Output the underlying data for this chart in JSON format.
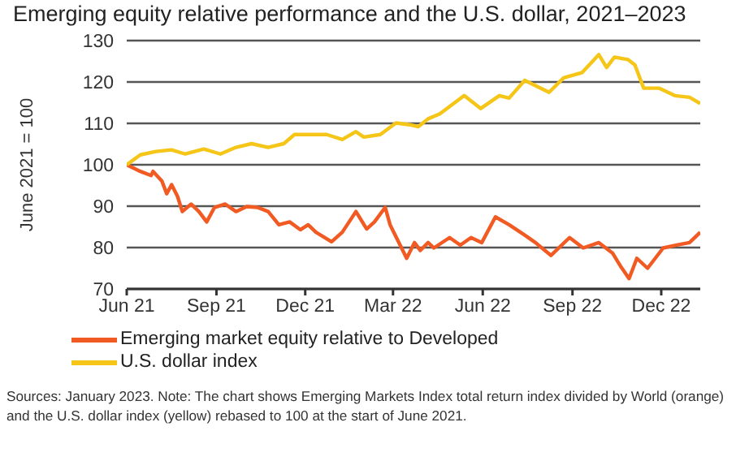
{
  "chart_data": {
    "type": "line",
    "title": "Emerging equity relative performance and the U.S. dollar, 2021–2023",
    "ylabel": "June 2021 = 100",
    "xlim": [
      "2021-06-01",
      "2023-01-10"
    ],
    "xticks": [
      {
        "value": "2021-06-01",
        "label": "Jun 21"
      },
      {
        "value": "2021-09-01",
        "label": "Sep 21"
      },
      {
        "value": "2021-12-01",
        "label": "Dec 21"
      },
      {
        "value": "2022-03-01",
        "label": "Mar 22"
      },
      {
        "value": "2022-06-01",
        "label": "Jun 22"
      },
      {
        "value": "2022-09-01",
        "label": "Sep 22"
      },
      {
        "value": "2022-12-01",
        "label": "Dec 22"
      }
    ],
    "ylim": [
      70,
      130
    ],
    "yticks": [
      70,
      80,
      90,
      100,
      110,
      120,
      130
    ],
    "grid": "y",
    "legend": "bottom",
    "marker": "none",
    "line_style": "solid",
    "series": [
      {
        "name": "Emerging market equity relative to Developed",
        "color": "#f15a22",
        "x": [
          "2021-06-01",
          "2021-06-15",
          "2021-06-26",
          "2021-06-28",
          "2021-07-07",
          "2021-07-12",
          "2021-07-17",
          "2021-07-23",
          "2021-07-28",
          "2021-08-06",
          "2021-08-14",
          "2021-08-22",
          "2021-08-30",
          "2021-09-10",
          "2021-09-21",
          "2021-10-02",
          "2021-10-13",
          "2021-10-24",
          "2021-11-04",
          "2021-11-15",
          "2021-11-26",
          "2021-12-04",
          "2021-12-12",
          "2021-12-28",
          "2022-01-08",
          "2022-01-22",
          "2022-02-02",
          "2022-02-10",
          "2022-02-21",
          "2022-02-26",
          "2022-03-15",
          "2022-03-23",
          "2022-03-29",
          "2022-04-06",
          "2022-04-12",
          "2022-04-28",
          "2022-05-09",
          "2022-05-20",
          "2022-05-31",
          "2022-06-14",
          "2022-06-28",
          "2022-07-14",
          "2022-07-25",
          "2022-08-10",
          "2022-08-29",
          "2022-09-12",
          "2022-09-28",
          "2022-10-12",
          "2022-10-20",
          "2022-10-29",
          "2022-11-06",
          "2022-11-17",
          "2022-12-03",
          "2022-12-17",
          "2022-12-30",
          "2023-01-10"
        ],
        "values": [
          100,
          98.4,
          97.4,
          98.4,
          96.1,
          93,
          95.2,
          92.4,
          88.7,
          90.5,
          88.7,
          86.2,
          89.7,
          90.5,
          88.7,
          89.9,
          89.7,
          88.7,
          85.5,
          86.2,
          84.3,
          85.5,
          83.7,
          81.4,
          83.7,
          88.7,
          84.5,
          86.2,
          89.7,
          85.5,
          77.4,
          81.2,
          79.3,
          81.2,
          79.9,
          82.4,
          80.6,
          82.4,
          81.2,
          87.4,
          85.5,
          83,
          81.2,
          78.1,
          82.4,
          79.9,
          81.2,
          78.7,
          75.6,
          72.5,
          77.4,
          75,
          79.9,
          80.6,
          81.2,
          83.7
        ]
      },
      {
        "name": "U.S. dollar index",
        "color": "#f5c518",
        "x": [
          "2021-06-01",
          "2021-06-15",
          "2021-07-01",
          "2021-07-17",
          "2021-07-31",
          "2021-08-19",
          "2021-09-05",
          "2021-09-21",
          "2021-10-07",
          "2021-10-24",
          "2021-11-09",
          "2021-11-20",
          "2021-12-07",
          "2021-12-23",
          "2022-01-08",
          "2022-01-22",
          "2022-01-30",
          "2022-02-16",
          "2022-03-04",
          "2022-03-20",
          "2022-03-27",
          "2022-04-06",
          "2022-04-18",
          "2022-05-13",
          "2022-05-30",
          "2022-06-18",
          "2022-06-28",
          "2022-07-14",
          "2022-08-08",
          "2022-08-23",
          "2022-09-11",
          "2022-09-28",
          "2022-10-06",
          "2022-10-14",
          "2022-10-28",
          "2022-11-04",
          "2022-11-13",
          "2022-11-29",
          "2022-12-15",
          "2022-12-30",
          "2023-01-10"
        ],
        "values": [
          100,
          102.4,
          103.2,
          103.6,
          102.6,
          103.8,
          102.6,
          104.2,
          105.1,
          104.2,
          105.1,
          107.3,
          107.3,
          107.3,
          106.1,
          108,
          106.7,
          107.3,
          110.1,
          109.6,
          109.2,
          111.1,
          112.3,
          116.7,
          113.6,
          116.7,
          116.1,
          120.4,
          117.5,
          121,
          122.3,
          126.6,
          123.5,
          126,
          125.4,
          124.1,
          118.5,
          118.5,
          116.7,
          116.3,
          114.8
        ]
      }
    ],
    "annotations": [
      "Sources: January 2023. Note: The chart shows Emerging Markets Index total return index divided by World (orange) and the U.S. dollar index (yellow) rebased to 100 at the start of June 2021."
    ]
  }
}
